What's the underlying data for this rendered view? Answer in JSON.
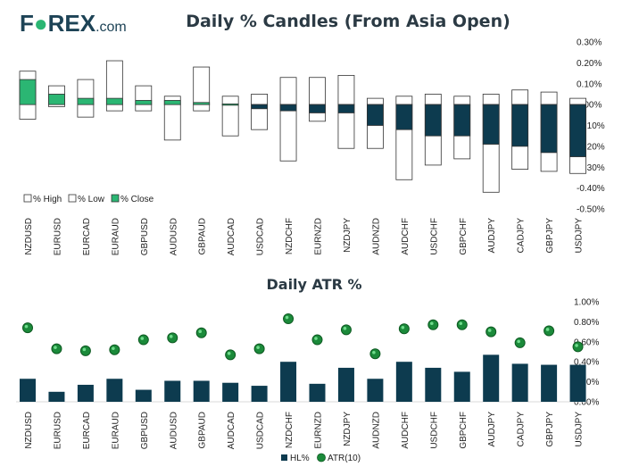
{
  "logo": {
    "part1": "F",
    "part2": "REX",
    "suffix": ".com",
    "dark_color": "#1d4356",
    "accent_color": "#2bb673"
  },
  "colors": {
    "dark": "#0d3b4f",
    "green": "#2bb673",
    "green_marker": "#1b8a3a",
    "border": "#333333",
    "gridline": "#cccccc"
  },
  "chart_data": [
    {
      "type": "candlestick",
      "title": "Daily % Candles (From Asia Open)",
      "categories": [
        "NZDUSD",
        "EURUSD",
        "EURCAD",
        "EURAUD",
        "GBPUSD",
        "AUDUSD",
        "GBPAUD",
        "AUDCAD",
        "USDCAD",
        "NZDCHF",
        "EURNZD",
        "NZDJPY",
        "AUDNZD",
        "AUDCHF",
        "USDCHF",
        "GBPCHF",
        "AUDJPY",
        "CADJPY",
        "GBPJPY",
        "USDJPY"
      ],
      "series": [
        {
          "name": "% High",
          "values": [
            0.16,
            0.09,
            0.12,
            0.21,
            0.09,
            0.04,
            0.18,
            0.04,
            0.05,
            0.13,
            0.13,
            0.14,
            0.03,
            0.04,
            0.05,
            0.04,
            0.05,
            0.07,
            0.06,
            0.03
          ]
        },
        {
          "name": "% Low",
          "values": [
            -0.07,
            -0.01,
            -0.06,
            -0.03,
            -0.03,
            -0.17,
            -0.03,
            -0.15,
            -0.12,
            -0.27,
            -0.08,
            -0.21,
            -0.21,
            -0.36,
            -0.29,
            -0.26,
            -0.42,
            -0.31,
            -0.32,
            -0.33
          ]
        },
        {
          "name": "% Close",
          "values": [
            0.12,
            0.05,
            0.03,
            0.03,
            0.02,
            0.02,
            0.01,
            0.0,
            -0.02,
            -0.03,
            -0.04,
            -0.04,
            -0.1,
            -0.12,
            -0.15,
            -0.15,
            -0.19,
            -0.2,
            -0.23,
            -0.25
          ]
        }
      ],
      "ylim": [
        -0.5,
        0.3
      ],
      "yticks": [
        "0.30%",
        "0.20%",
        "0.10%",
        "0.00%",
        "-0.10%",
        "-0.20%",
        "-0.30%",
        "-0.40%",
        "-0.50%"
      ],
      "ytick_values": [
        0.3,
        0.2,
        0.1,
        0.0,
        -0.1,
        -0.2,
        -0.3,
        -0.4,
        -0.5
      ],
      "legend": [
        "% High",
        "% Low",
        "% Close"
      ]
    },
    {
      "type": "bar+scatter",
      "title": "Daily ATR %",
      "categories": [
        "NZDUSD",
        "EURUSD",
        "EURCAD",
        "EURAUD",
        "GBPUSD",
        "AUDUSD",
        "GBPAUD",
        "AUDCAD",
        "USDCAD",
        "NZDCHF",
        "EURNZD",
        "NZDJPY",
        "AUDNZD",
        "AUDCHF",
        "USDCHF",
        "GBPCHF",
        "AUDJPY",
        "CADJPY",
        "GBPJPY",
        "USDJPY"
      ],
      "series": [
        {
          "name": "HL%",
          "values": [
            0.23,
            0.1,
            0.17,
            0.23,
            0.12,
            0.21,
            0.21,
            0.19,
            0.16,
            0.4,
            0.18,
            0.34,
            0.23,
            0.4,
            0.34,
            0.3,
            0.47,
            0.38,
            0.37,
            0.37
          ]
        },
        {
          "name": "ATR(10)",
          "values": [
            0.74,
            0.53,
            0.51,
            0.52,
            0.62,
            0.64,
            0.69,
            0.47,
            0.53,
            0.83,
            0.62,
            0.72,
            0.48,
            0.73,
            0.77,
            0.77,
            0.7,
            0.59,
            0.71,
            0.55
          ]
        }
      ],
      "ylim": [
        0,
        1.0
      ],
      "yticks": [
        "1.00%",
        "0.80%",
        "0.60%",
        "0.40%",
        "0.20%",
        "0.00%"
      ],
      "ytick_values": [
        1.0,
        0.8,
        0.6,
        0.4,
        0.2,
        0.0
      ],
      "legend": [
        "HL%",
        "ATR(10)"
      ]
    }
  ]
}
